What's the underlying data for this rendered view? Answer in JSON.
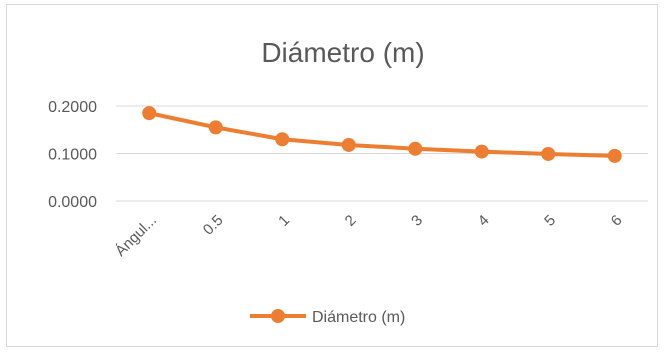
{
  "chart_data": {
    "type": "line",
    "title": "Diámetro (m)",
    "xlabel": "",
    "ylabel": "",
    "categories": [
      "Ángul...",
      "0.5",
      "1",
      "2",
      "3",
      "4",
      "5",
      "6"
    ],
    "series": [
      {
        "name": "Diámetro (m)",
        "values": [
          0.185,
          0.155,
          0.13,
          0.118,
          0.11,
          0.104,
          0.099,
          0.095
        ]
      }
    ],
    "ylim": [
      0,
      0.2
    ],
    "yticks": [
      "0.0000",
      "0.1000",
      "0.2000"
    ],
    "grid": true,
    "legend": "bottom",
    "colors": {
      "series": "#ed7d31",
      "grid": "#d9d9d9",
      "text": "#595959"
    }
  }
}
